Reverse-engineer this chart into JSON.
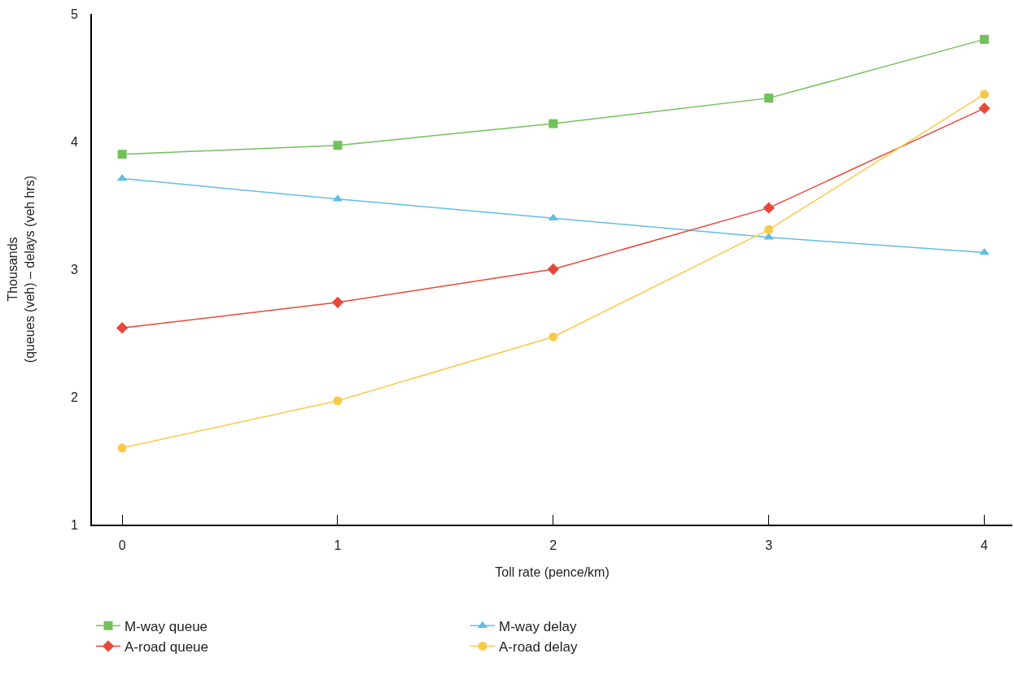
{
  "chart_data": {
    "type": "line",
    "xlabel": "Toll rate (pence/km)",
    "ylabel": "Thousands\n(queues (veh) – delays (veh hrs)",
    "x": [
      0,
      1,
      2,
      3,
      4
    ],
    "xlim": [
      -0.14,
      4.13
    ],
    "xticks": [
      0,
      1,
      2,
      3,
      4
    ],
    "ylim": [
      1,
      5
    ],
    "yticks": [
      1,
      2,
      3,
      4,
      5
    ],
    "grid": false,
    "legend": "bottom",
    "series": [
      {
        "name": "M-way queue",
        "color": "#72c05b",
        "marker": "square",
        "values": [
          3.9,
          3.97,
          4.14,
          4.34,
          4.8
        ]
      },
      {
        "name": "M-way delay",
        "color": "#62bde4",
        "marker": "triangle",
        "values": [
          3.71,
          3.55,
          3.4,
          3.25,
          3.13
        ]
      },
      {
        "name": "A-road queue",
        "color": "#e8483a",
        "marker": "diamond",
        "values": [
          2.54,
          2.74,
          3.0,
          3.48,
          4.26
        ]
      },
      {
        "name": "A-road delay",
        "color": "#f8c94a",
        "marker": "circle",
        "values": [
          1.6,
          1.97,
          2.47,
          3.31,
          4.37
        ]
      }
    ]
  }
}
